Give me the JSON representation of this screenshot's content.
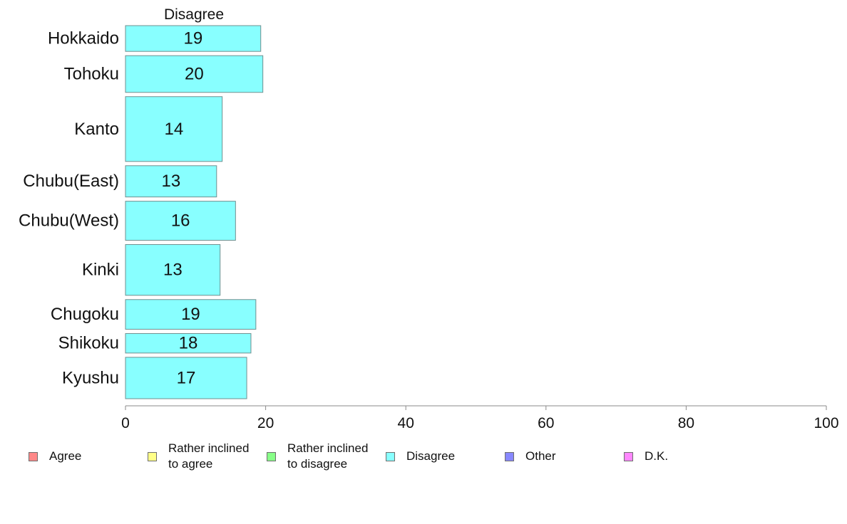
{
  "chart_data": {
    "type": "bar",
    "orientation": "horizontal",
    "title": "Disagree",
    "categories": [
      "Hokkaido",
      "Tohoku",
      "Kanto",
      "Chubu(East)",
      "Chubu(West)",
      "Kinki",
      "Chugoku",
      "Shikoku",
      "Kyushu"
    ],
    "values": [
      19,
      20,
      14,
      13,
      16,
      13,
      19,
      18,
      17
    ],
    "display_values": [
      19.3,
      19.6,
      13.8,
      13.0,
      15.7,
      13.5,
      18.6,
      17.9,
      17.3
    ],
    "relative_bar_weights": [
      0.66,
      0.94,
      1.66,
      0.8,
      1.0,
      1.3,
      0.76,
      0.5,
      1.06
    ],
    "xlim": [
      0,
      100
    ],
    "xticks": [
      0,
      20,
      40,
      60,
      80,
      100
    ],
    "xlabel": "",
    "ylabel": "",
    "grid": false,
    "bar_color": "#88ffff",
    "bar_border_color": "#6f8f8f",
    "axis_color": "#8a8a8a",
    "legend_position": "bottom"
  },
  "legend": [
    {
      "label": "Agree",
      "color": "#ff8888",
      "icon": "square-swatch"
    },
    {
      "label": "Rather inclined\nto agree",
      "color": "#ffff88",
      "icon": "square-swatch"
    },
    {
      "label": "Rather inclined\nto disagree",
      "color": "#88ff88",
      "icon": "square-swatch"
    },
    {
      "label": "Disagree",
      "color": "#88ffff",
      "icon": "square-swatch"
    },
    {
      "label": "Other",
      "color": "#8888ff",
      "icon": "square-swatch"
    },
    {
      "label": "D.K.",
      "color": "#ff88ff",
      "icon": "square-swatch"
    }
  ]
}
